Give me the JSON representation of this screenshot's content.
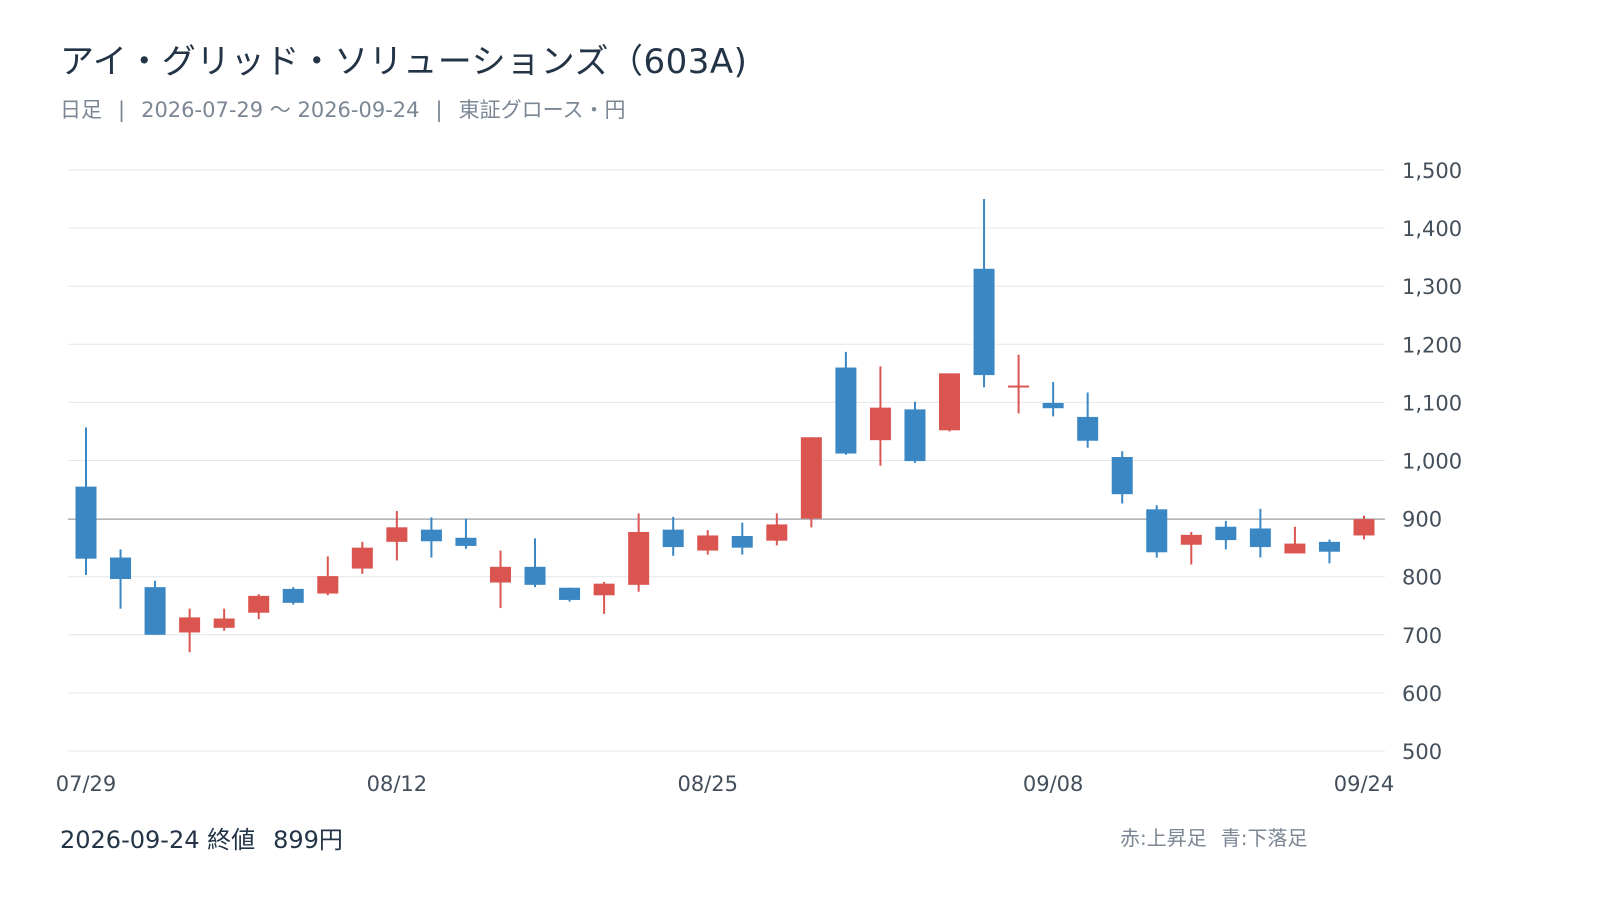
{
  "header": {
    "title": "アイ・グリッド・ソリューションズ（603A)",
    "subtitle_period_type": "日足",
    "subtitle_range": "2026-07-29 ～ 2026-09-24",
    "subtitle_market": "東証グロース・円",
    "subtitle_sep": "|"
  },
  "footer": {
    "close_date": "2026-09-24",
    "close_label": "終値",
    "close_value": "899円",
    "legend_up": "赤:上昇足",
    "legend_down": "青:下落足"
  },
  "colors": {
    "up": "#db5550",
    "down": "#3a87c4",
    "grid": "#e4e7ea",
    "reference_line": "#9a9fa5"
  },
  "chart_data": {
    "type": "candlestick",
    "ylim": [
      500,
      1500
    ],
    "yticks": [
      500,
      600,
      700,
      800,
      900,
      1000,
      1100,
      1200,
      1300,
      1400,
      1500
    ],
    "ytick_labels": [
      "500",
      "600",
      "700",
      "800",
      "900",
      "1,000",
      "1,100",
      "1,200",
      "1,300",
      "1,400",
      "1,500"
    ],
    "y_axis_side": "right",
    "reference_line": 899,
    "xtick_labels": [
      {
        "index": 0,
        "label": "07/29"
      },
      {
        "index": 9,
        "label": "08/12"
      },
      {
        "index": 18,
        "label": "08/25"
      },
      {
        "index": 28,
        "label": "09/08"
      },
      {
        "index": 37,
        "label": "09/24"
      }
    ],
    "candles": [
      {
        "o": 955,
        "h": 1057,
        "l": 803,
        "c": 831
      },
      {
        "o": 833,
        "h": 847,
        "l": 745,
        "c": 796
      },
      {
        "o": 782,
        "h": 793,
        "l": 700,
        "c": 700
      },
      {
        "o": 704,
        "h": 745,
        "l": 670,
        "c": 730
      },
      {
        "o": 712,
        "h": 745,
        "l": 707,
        "c": 728
      },
      {
        "o": 738,
        "h": 770,
        "l": 727,
        "c": 767
      },
      {
        "o": 779,
        "h": 782,
        "l": 752,
        "c": 755
      },
      {
        "o": 771,
        "h": 835,
        "l": 768,
        "c": 801
      },
      {
        "o": 814,
        "h": 860,
        "l": 805,
        "c": 850
      },
      {
        "o": 860,
        "h": 913,
        "l": 828,
        "c": 885
      },
      {
        "o": 881,
        "h": 902,
        "l": 833,
        "c": 861
      },
      {
        "o": 867,
        "h": 900,
        "l": 848,
        "c": 853
      },
      {
        "o": 790,
        "h": 845,
        "l": 746,
        "c": 817
      },
      {
        "o": 817,
        "h": 866,
        "l": 782,
        "c": 786
      },
      {
        "o": 781,
        "h": 781,
        "l": 757,
        "c": 760
      },
      {
        "o": 768,
        "h": 791,
        "l": 736,
        "c": 788
      },
      {
        "o": 786,
        "h": 909,
        "l": 774,
        "c": 877
      },
      {
        "o": 881,
        "h": 903,
        "l": 836,
        "c": 851
      },
      {
        "o": 845,
        "h": 880,
        "l": 838,
        "c": 871
      },
      {
        "o": 870,
        "h": 893,
        "l": 838,
        "c": 850
      },
      {
        "o": 862,
        "h": 909,
        "l": 854,
        "c": 890
      },
      {
        "o": 900,
        "h": 1040,
        "l": 885,
        "c": 1040
      },
      {
        "o": 1160,
        "h": 1187,
        "l": 1010,
        "c": 1012
      },
      {
        "o": 1035,
        "h": 1162,
        "l": 991,
        "c": 1091
      },
      {
        "o": 1088,
        "h": 1101,
        "l": 996,
        "c": 999
      },
      {
        "o": 1052,
        "h": 1150,
        "l": 1050,
        "c": 1150
      },
      {
        "o": 1330,
        "h": 1450,
        "l": 1126,
        "c": 1147
      },
      {
        "o": 1126,
        "h": 1182,
        "l": 1081,
        "c": 1129
      },
      {
        "o": 1099,
        "h": 1135,
        "l": 1076,
        "c": 1090
      },
      {
        "o": 1075,
        "h": 1117,
        "l": 1022,
        "c": 1034
      },
      {
        "o": 1006,
        "h": 1016,
        "l": 926,
        "c": 942
      },
      {
        "o": 916,
        "h": 923,
        "l": 833,
        "c": 842
      },
      {
        "o": 855,
        "h": 877,
        "l": 821,
        "c": 872
      },
      {
        "o": 886,
        "h": 896,
        "l": 847,
        "c": 863
      },
      {
        "o": 883,
        "h": 917,
        "l": 833,
        "c": 851
      },
      {
        "o": 840,
        "h": 886,
        "l": 840,
        "c": 857
      },
      {
        "o": 860,
        "h": 864,
        "l": 823,
        "c": 843
      },
      {
        "o": 871,
        "h": 905,
        "l": 864,
        "c": 899
      }
    ]
  }
}
